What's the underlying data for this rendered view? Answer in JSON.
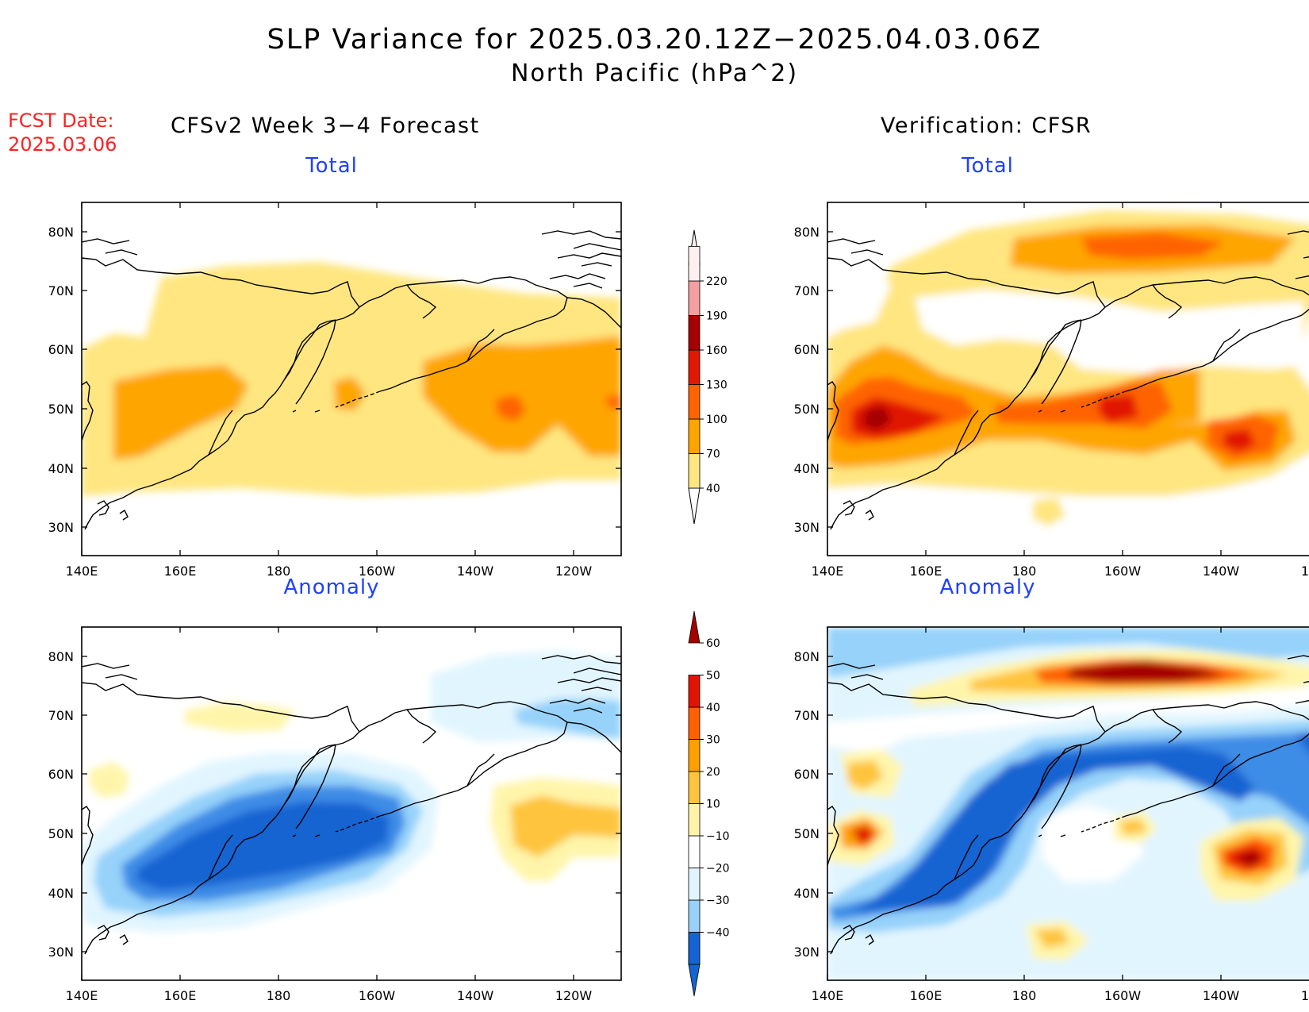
{
  "title": {
    "line1": "SLP Variance for 2025.03.20.12Z−2025.04.03.06Z",
    "line2": "North Pacific (hPa^2)"
  },
  "forecast_date": {
    "label": "FCST Date:",
    "value": "2025.03.06"
  },
  "columns": {
    "left": "CFSv2 Week 3−4 Forecast",
    "right": "Verification: CFSR"
  },
  "panels": {
    "top_left": "Total",
    "top_right": "Total",
    "bottom_left": "Anomaly",
    "bottom_right": "Anomaly"
  },
  "axes": {
    "lat_labels": [
      "80N",
      "70N",
      "60N",
      "50N",
      "40N",
      "30N"
    ],
    "lon_labels": [
      "140E",
      "160E",
      "180",
      "160W",
      "140W",
      "120W"
    ]
  },
  "colorbar_total": {
    "labels": [
      "40",
      "70",
      "100",
      "130",
      "160",
      "190",
      "220"
    ],
    "colors": [
      "#ffe680",
      "#ffa500",
      "#ff6400",
      "#e11900",
      "#a50000",
      "#f4a0a0",
      "#fff0f0"
    ]
  },
  "colorbar_anomaly": {
    "labels": [
      "-40",
      "-30",
      "-20",
      "-10",
      "10",
      "20",
      "30",
      "40",
      "50",
      "60"
    ],
    "colors": [
      "#1464d2",
      "#3c8ce6",
      "#96d2fa",
      "#e1f5ff",
      "#ffffff",
      "#fff5aa",
      "#ffc43c",
      "#ffa000",
      "#ff6000",
      "#e11400",
      "#a50000"
    ]
  },
  "chart_data": {
    "type": "map",
    "region": "North Pacific",
    "units": "hPa^2",
    "lat_range": [
      "25N",
      "85N"
    ],
    "lon_range": [
      "140E",
      "110W"
    ]
  }
}
